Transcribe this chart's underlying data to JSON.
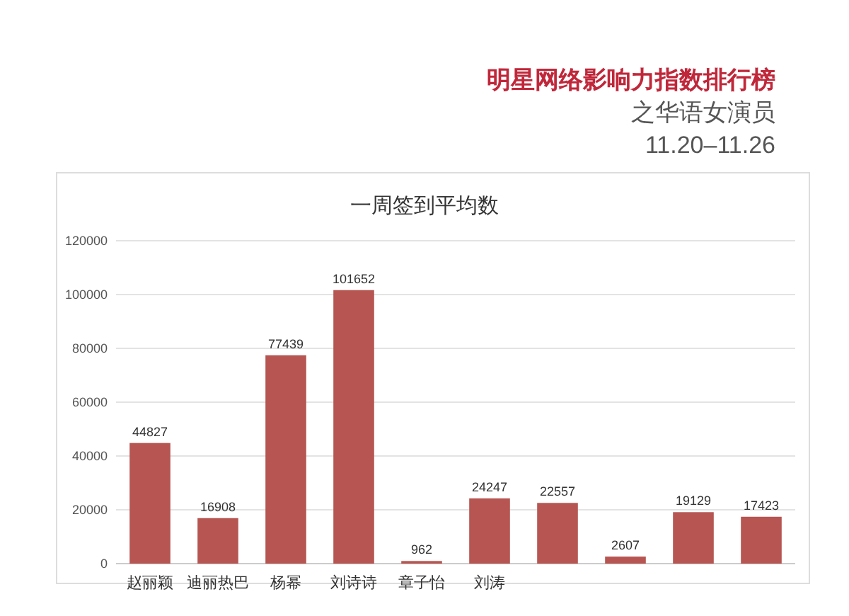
{
  "chart_data": {
    "type": "bar",
    "title": "一周签到平均数",
    "annotations": [
      "明星网络影响力指数排行榜",
      "之华语女演员",
      "11.20–11.26"
    ],
    "categories": [
      "赵丽颖",
      "迪丽热巴",
      "杨幂",
      "刘诗诗",
      "章子怡",
      "刘涛",
      null,
      null,
      null,
      null
    ],
    "values": [
      44827,
      16908,
      77439,
      101652,
      962,
      24247,
      22557,
      2607,
      19129,
      17423
    ],
    "color": "#b65551",
    "ylim": [
      0,
      120000
    ],
    "yticks": [
      0,
      20000,
      40000,
      60000,
      80000,
      100000,
      120000
    ],
    "grid": "y",
    "data_labels": true
  }
}
